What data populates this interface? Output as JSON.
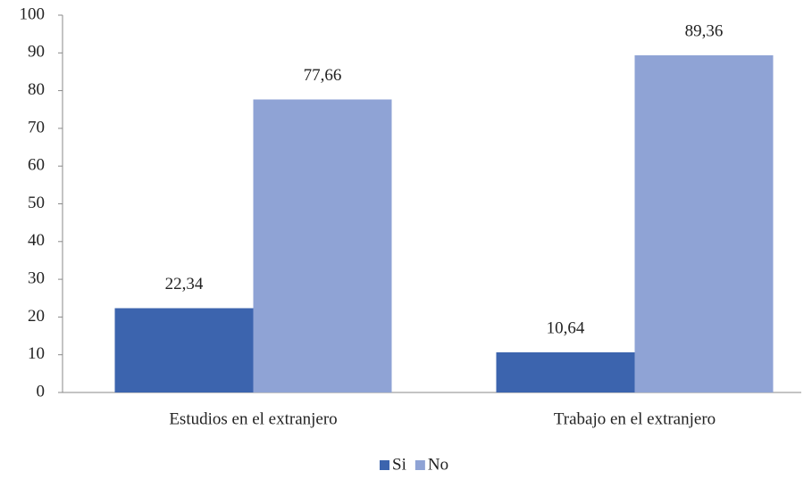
{
  "chart_data": {
    "type": "bar",
    "categories": [
      "Estudios en el extranjero",
      "Trabajo en el extranjero"
    ],
    "series": [
      {
        "name": "Si",
        "color": "#3c64ae",
        "values": [
          22.34,
          10.64
        ],
        "value_labels": [
          "22,34",
          "10,64"
        ]
      },
      {
        "name": "No",
        "color": "#8fa3d5",
        "values": [
          77.66,
          89.36
        ],
        "value_labels": [
          "77,66",
          "89,36"
        ]
      }
    ],
    "ylim": [
      0,
      100
    ],
    "yticks": [
      0,
      10,
      20,
      30,
      40,
      50,
      60,
      70,
      80,
      90,
      100
    ],
    "grid": false,
    "legend": "bottom"
  }
}
